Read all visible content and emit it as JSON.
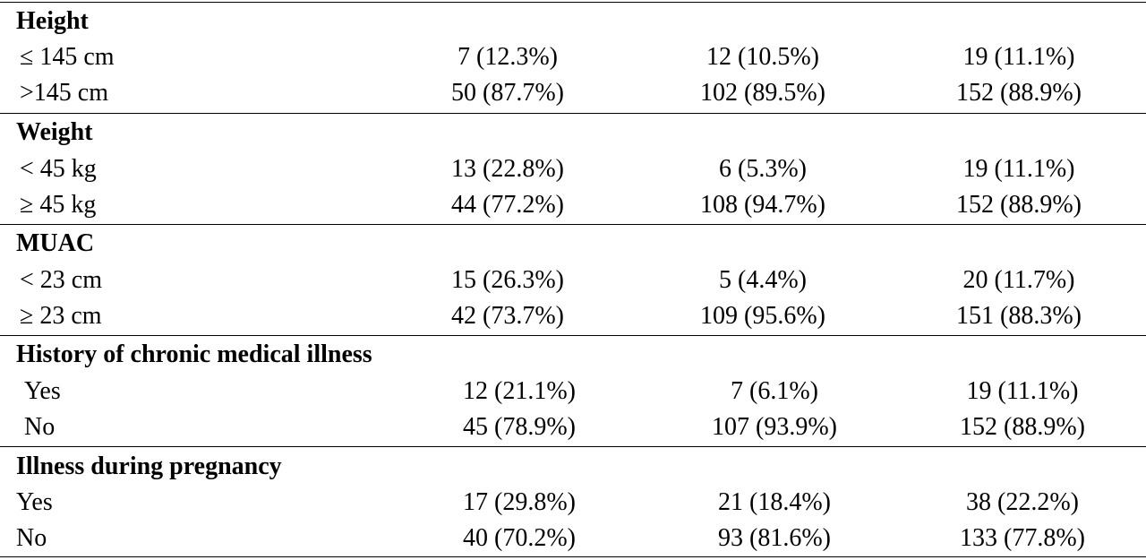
{
  "sections": [
    {
      "heading": "Height",
      "rows": [
        {
          "label": "≤ 145 cm",
          "c1": "7 (12.3%)",
          "c2": "12 (10.5%)",
          "c3": "19 (11.1%)"
        },
        {
          "label": ">145 cm",
          "c1": "50 (87.7%)",
          "c2": "102 (89.5%)",
          "c3": "152 (88.9%)"
        }
      ]
    },
    {
      "heading": "Weight",
      "rows": [
        {
          "label": "< 45 kg",
          "c1": "13 (22.8%)",
          "c2": "6 (5.3%)",
          "c3": "19 (11.1%)"
        },
        {
          "label": "≥ 45 kg",
          "c1": "44 (77.2%)",
          "c2": "108 (94.7%)",
          "c3": "152 (88.9%)"
        }
      ]
    },
    {
      "heading": "MUAC",
      "rows": [
        {
          "label": "< 23 cm",
          "c1": "15 (26.3%)",
          "c2": "5 (4.4%)",
          "c3": "20 (11.7%)"
        },
        {
          "label": "≥ 23 cm",
          "c1": "42 (73.7%)",
          "c2": "109 (95.6%)",
          "c3": "151 (88.3%)"
        }
      ]
    },
    {
      "heading": "History of chronic medical illness",
      "rows": [
        {
          "label": "Yes",
          "c1": "12 (21.1%)",
          "c2": "7 (6.1%)",
          "c3": "19 (11.1%)"
        },
        {
          "label": "No",
          "c1": "45 (78.9%)",
          "c2": "107 (93.9%)",
          "c3": "152 (88.9%)"
        }
      ]
    },
    {
      "heading": "Illness during pregnancy",
      "rows": [
        {
          "label": "Yes",
          "c1": "17 (29.8%)",
          "c2": "21 (18.4%)",
          "c3": "38 (22.2%)"
        },
        {
          "label": "No",
          "c1": "40 (70.2%)",
          "c2": "93 (81.6%)",
          "c3": "133 (77.8%)"
        }
      ]
    }
  ]
}
